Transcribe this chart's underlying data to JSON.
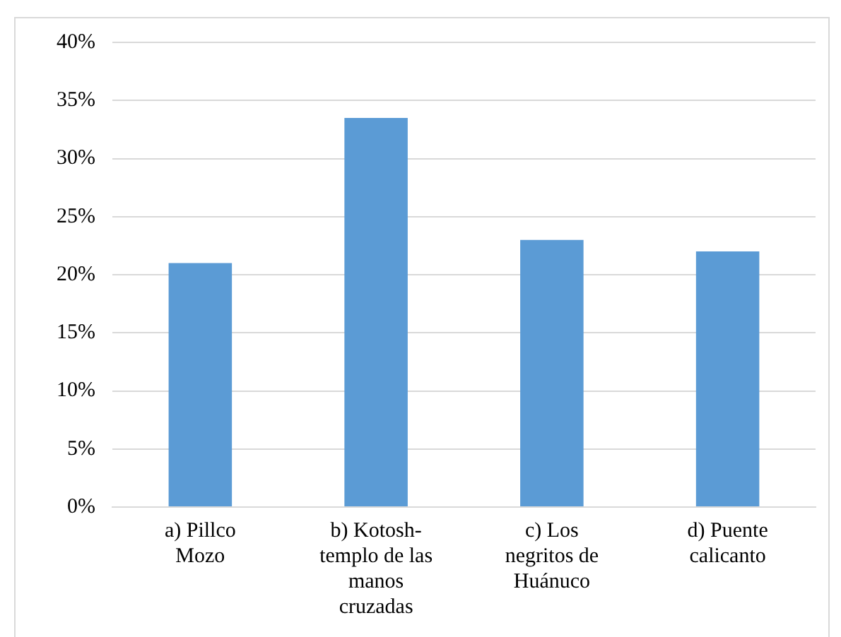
{
  "chart_data": {
    "type": "bar",
    "categories": [
      "a) Pillco\nMozo",
      "b) Kotosh-\ntemplo de las\nmanos\ncruzadas",
      "c) Los\nnegritos de\nHuánuco",
      "d) Puente\ncalicanto"
    ],
    "values": [
      21,
      33.5,
      23,
      22
    ],
    "color": "#5b9bd5",
    "ylim": [
      0,
      40
    ],
    "yticks": [
      {
        "value": 0,
        "label": "0%"
      },
      {
        "value": 5,
        "label": "5%"
      },
      {
        "value": 10,
        "label": "10%"
      },
      {
        "value": 15,
        "label": "15%"
      },
      {
        "value": 20,
        "label": "20%"
      },
      {
        "value": 25,
        "label": "25%"
      },
      {
        "value": 30,
        "label": "30%"
      },
      {
        "value": 35,
        "label": "35%"
      },
      {
        "value": 40,
        "label": "40%"
      }
    ],
    "grid": "y"
  }
}
